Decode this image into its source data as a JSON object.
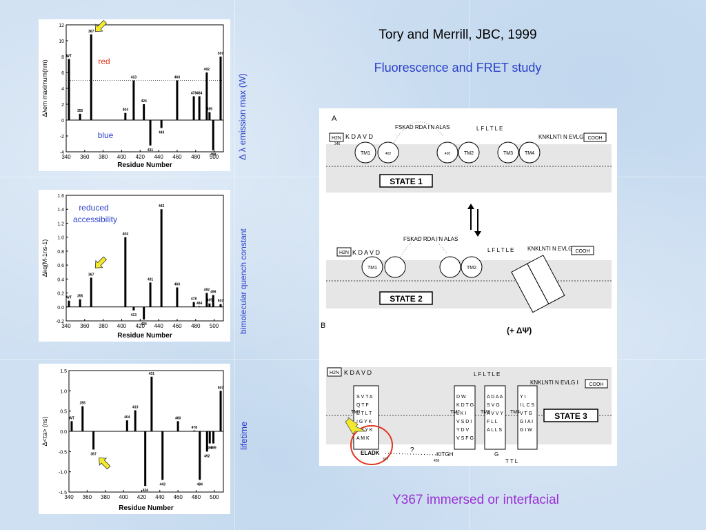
{
  "slide": {
    "citation": "Tory and Merrill, JBC, 1999",
    "subtitle": "Fluorescence and FRET study",
    "bottom_caption": "Y367 immersed or interfacial",
    "colors": {
      "blue_text": "#2a3fc9",
      "red_text": "#e0341c",
      "purple_text": "#9b2fd6",
      "arrow_yellow": "#f2ea2a"
    }
  },
  "side_labels": {
    "emission": "Δ λ emission max (W)",
    "quench": "bimolecular quench constant",
    "lifetime": "lifetime"
  },
  "chart_data": [
    {
      "type": "bar",
      "ylabel": "Δλem maximum(nm)",
      "xlabel": "Residue Number",
      "xlim": [
        340,
        510
      ],
      "ylim": [
        -4,
        12
      ],
      "xticks": [
        340,
        360,
        380,
        400,
        420,
        440,
        460,
        480,
        500
      ],
      "yticks": [
        -4,
        -2,
        0,
        2,
        4,
        6,
        8,
        10,
        12
      ],
      "reference_line": 5,
      "annotations": [
        "red",
        "blue"
      ],
      "points": [
        {
          "label": "WT",
          "x": 343,
          "y": 7.7
        },
        {
          "label": "355",
          "x": 355,
          "y": 0.8
        },
        {
          "label": "367",
          "x": 367,
          "y": 10.8
        },
        {
          "label": "404",
          "x": 404,
          "y": 0.9
        },
        {
          "label": "413",
          "x": 413,
          "y": 5.0
        },
        {
          "label": "424",
          "x": 424,
          "y": 2.0
        },
        {
          "label": "431",
          "x": 431,
          "y": -3.2
        },
        {
          "label": "443",
          "x": 443,
          "y": -1.0
        },
        {
          "label": "460",
          "x": 460,
          "y": 5.0
        },
        {
          "label": "478",
          "x": 478,
          "y": 3.0
        },
        {
          "label": "484",
          "x": 484,
          "y": 3.0
        },
        {
          "label": "492",
          "x": 492,
          "y": 6.0
        },
        {
          "label": "495",
          "x": 495,
          "y": 1.0
        },
        {
          "label": "499",
          "x": 499,
          "y": -3.8
        },
        {
          "label": "507",
          "x": 507,
          "y": 8.0
        }
      ]
    },
    {
      "type": "bar",
      "ylabel": "Δkq(M-1ns-1)",
      "xlabel": "Residue Number",
      "xlim": [
        340,
        510
      ],
      "ylim": [
        -0.2,
        1.6
      ],
      "xticks": [
        340,
        360,
        380,
        400,
        420,
        440,
        460,
        480,
        500
      ],
      "yticks": [
        -0.2,
        0.0,
        0.2,
        0.4,
        0.6,
        0.8,
        1.0,
        1.2,
        1.4,
        1.6
      ],
      "annotations": [
        "reduced",
        "accessibility"
      ],
      "points": [
        {
          "label": "WT",
          "x": 343,
          "y": 0.09
        },
        {
          "label": "355",
          "x": 355,
          "y": 0.11
        },
        {
          "label": "367",
          "x": 367,
          "y": 0.42
        },
        {
          "label": "404",
          "x": 404,
          "y": 1.0
        },
        {
          "label": "413",
          "x": 413,
          "y": -0.05
        },
        {
          "label": "424",
          "x": 424,
          "y": -0.18
        },
        {
          "label": "431",
          "x": 431,
          "y": 0.35
        },
        {
          "label": "443",
          "x": 443,
          "y": 1.4
        },
        {
          "label": "460",
          "x": 460,
          "y": 0.28
        },
        {
          "label": "478",
          "x": 478,
          "y": 0.07
        },
        {
          "label": "484",
          "x": 484,
          "y": 0.01
        },
        {
          "label": "492",
          "x": 492,
          "y": 0.2
        },
        {
          "label": "495",
          "x": 495,
          "y": 0.05
        },
        {
          "label": "499",
          "x": 499,
          "y": 0.17
        },
        {
          "label": "507",
          "x": 507,
          "y": 0.04
        }
      ]
    },
    {
      "type": "bar",
      "ylabel": "Δ<τa> (ns)",
      "xlabel": "Residue Number",
      "xlim": [
        340,
        510
      ],
      "ylim": [
        -1.5,
        1.5
      ],
      "xticks": [
        340,
        360,
        380,
        400,
        420,
        440,
        460,
        480,
        500
      ],
      "yticks": [
        -1.5,
        -1.0,
        -0.5,
        0.0,
        0.5,
        1.0,
        1.5
      ],
      "points": [
        {
          "label": "WT",
          "x": 343,
          "y": 0.25
        },
        {
          "label": "355",
          "x": 355,
          "y": 0.62
        },
        {
          "label": "367",
          "x": 367,
          "y": -0.45
        },
        {
          "label": "404",
          "x": 404,
          "y": 0.27
        },
        {
          "label": "413",
          "x": 413,
          "y": 0.52
        },
        {
          "label": "424",
          "x": 424,
          "y": -1.35
        },
        {
          "label": "431",
          "x": 431,
          "y": 1.35
        },
        {
          "label": "443",
          "x": 443,
          "y": -1.2
        },
        {
          "label": "460",
          "x": 460,
          "y": 0.25
        },
        {
          "label": "478",
          "x": 478,
          "y": 0.02
        },
        {
          "label": "484",
          "x": 484,
          "y": -1.2
        },
        {
          "label": "492",
          "x": 492,
          "y": -0.5
        },
        {
          "label": "495",
          "x": 495,
          "y": -0.3
        },
        {
          "label": "499",
          "x": 499,
          "y": -0.3
        },
        {
          "label": "507",
          "x": 507,
          "y": 1.0
        }
      ]
    }
  ],
  "diagram": {
    "section_a": "A",
    "section_b": "B",
    "state1": "STATE 1",
    "state2": "STATE 2",
    "state3": "STATE 3",
    "membrane_potential": "(+ ΔΨ)",
    "nterm": "H2N",
    "cterm": "COOH",
    "helices": [
      "TM1",
      "TM2",
      "TM3",
      "TM4"
    ],
    "seq_n": "K D A V D",
    "seq_loop1": "FSKAD RDA I'N ALAS",
    "seq_loop2": "L F L T L E",
    "seq_c": "KNKLNTI N EVLG I",
    "residue_numbers": [
      "346",
      "402",
      "420",
      "461",
      "470",
      "476",
      "509",
      "522",
      "532",
      "377",
      "436"
    ],
    "seq_state3_bottom": "ELADK",
    "seq_state3_kitgh": "KITGH",
    "seq_g": "G",
    "seq_ttl": "T T L",
    "tm1_seq": [
      "S V T A",
      "Q T F",
      "E T L T",
      "I G Y K",
      "S A Y K",
      "A M K"
    ],
    "tm2_seq": [
      "D W",
      "K D T G",
      "L K I",
      "V S D I",
      "Y D V",
      "V S F G"
    ],
    "tm3_seq": [
      "A D A A",
      "S V G",
      "A V V Y",
      "F L L",
      "A L L S"
    ],
    "tm4_seq": [
      "Y I",
      "I L C S",
      "V T G",
      "G I A I",
      "G I W"
    ],
    "unknown_gap": "?"
  }
}
